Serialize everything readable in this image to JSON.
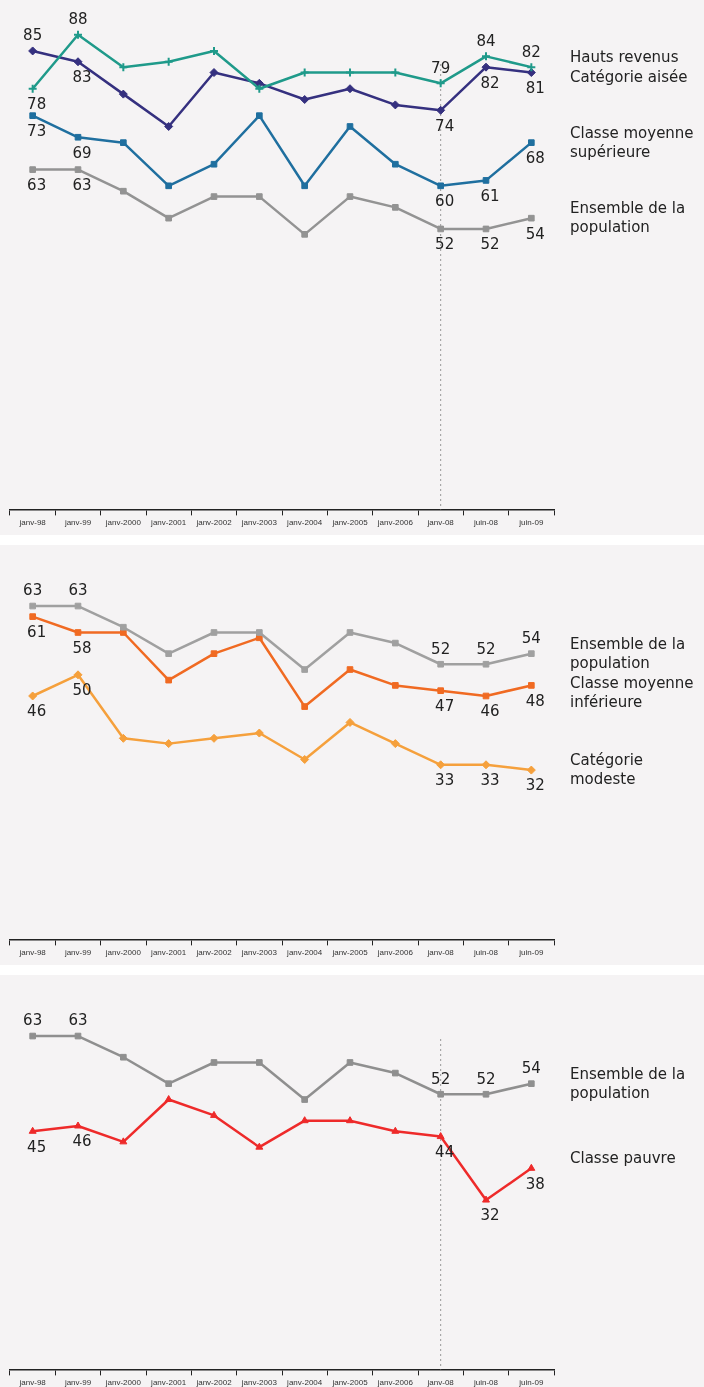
{
  "chart_data": [
    {
      "type": "line",
      "categories": [
        "janv-98",
        "janv-99",
        "janv-2000",
        "janv-2001",
        "janv-2002",
        "janv-2003",
        "janv-2004",
        "janv-2005",
        "janv-2006",
        "janv-08",
        "juin-08",
        "juin-09"
      ],
      "tick_labels": "x",
      "grid": false,
      "legend": false,
      "ref_lines": [
        {
          "axis": "x",
          "value": "janv-08",
          "color": "#999999",
          "line_style": "dotted"
        }
      ],
      "series": [
        {
          "name": "Hauts revenus",
          "color": "#1f9a8a",
          "marker": "cross",
          "values": [
            78,
            88,
            82,
            83,
            85,
            78,
            81,
            81,
            81,
            79,
            84,
            82
          ],
          "value_labels": [
            "78",
            "88",
            null,
            null,
            null,
            null,
            null,
            null,
            null,
            "79",
            "84",
            "82"
          ]
        },
        {
          "name": "Catégorie aisée",
          "color": "#35307f",
          "marker": "diamond",
          "values": [
            85,
            83,
            77,
            71,
            81,
            79,
            76,
            78,
            75,
            74,
            82,
            81
          ],
          "value_labels": [
            "85",
            "83",
            null,
            null,
            null,
            null,
            null,
            null,
            null,
            "74",
            "82",
            "81"
          ]
        },
        {
          "name": "Classe moyenne supérieure",
          "color": "#1f6f9f",
          "marker": "square",
          "values": [
            73,
            69,
            68,
            60,
            64,
            73,
            60,
            71,
            64,
            60,
            61,
            68
          ],
          "value_labels": [
            "73",
            "69",
            null,
            null,
            null,
            null,
            null,
            null,
            null,
            "60",
            "61",
            "68"
          ]
        },
        {
          "name": "Ensemble de la population",
          "color": "#939393",
          "marker": "square",
          "values": [
            63,
            63,
            59,
            54,
            58,
            58,
            51,
            58,
            56,
            52,
            52,
            54
          ],
          "value_labels": [
            "63",
            "63",
            null,
            null,
            null,
            null,
            null,
            null,
            null,
            "52",
            "52",
            "54"
          ]
        }
      ]
    },
    {
      "type": "line",
      "categories": [
        "janv-98",
        "janv-99",
        "janv-2000",
        "janv-2001",
        "janv-2002",
        "janv-2003",
        "janv-2004",
        "janv-2005",
        "janv-2006",
        "janv-08",
        "juin-08",
        "juin-09"
      ],
      "tick_labels": "x",
      "grid": false,
      "legend": false,
      "series": [
        {
          "name": "Ensemble de la population",
          "color": "#a0a0a0",
          "marker": "square",
          "values": [
            63,
            63,
            59,
            54,
            58,
            58,
            51,
            58,
            56,
            52,
            52,
            54
          ],
          "value_labels": [
            "63",
            "63",
            null,
            null,
            null,
            null,
            null,
            null,
            null,
            "52",
            "52",
            "54"
          ]
        },
        {
          "name": "Classe moyenne inférieure",
          "color": "#f06a22",
          "marker": "square",
          "values": [
            61,
            58,
            58,
            49,
            54,
            57,
            44,
            51,
            48,
            47,
            46,
            48
          ],
          "value_labels": [
            "61",
            "58",
            null,
            null,
            null,
            null,
            null,
            null,
            null,
            "47",
            "46",
            "48"
          ]
        },
        {
          "name": "Catégorie modeste",
          "color": "#f5a03c",
          "marker": "diamond",
          "values": [
            46,
            50,
            38,
            37,
            38,
            39,
            34,
            41,
            37,
            33,
            33,
            32
          ],
          "value_labels": [
            "46",
            "50",
            null,
            null,
            null,
            null,
            null,
            null,
            null,
            "33",
            "33",
            "32"
          ]
        }
      ]
    },
    {
      "type": "line",
      "categories": [
        "janv-98",
        "janv-99",
        "janv-2000",
        "janv-2001",
        "janv-2002",
        "janv-2003",
        "janv-2004",
        "janv-2005",
        "janv-2006",
        "janv-08",
        "juin-08",
        "juin-09"
      ],
      "tick_labels": "x",
      "grid": false,
      "legend": false,
      "ref_lines": [
        {
          "axis": "x",
          "value": "janv-08",
          "color": "#999999",
          "line_style": "dotted"
        }
      ],
      "series": [
        {
          "name": "Ensemble de la population",
          "color": "#8f8f8f",
          "marker": "square",
          "values": [
            63,
            63,
            59,
            54,
            58,
            58,
            51,
            58,
            56,
            52,
            52,
            54
          ],
          "value_labels": [
            "63",
            "63",
            null,
            null,
            null,
            null,
            null,
            null,
            null,
            "52",
            "52",
            "54"
          ]
        },
        {
          "name": "Classe pauvre",
          "color": "#ee2a2a",
          "marker": "triangle",
          "values": [
            45,
            46,
            43,
            51,
            48,
            42,
            47,
            47,
            45,
            44,
            32,
            38
          ],
          "value_labels": [
            "45",
            "46",
            null,
            null,
            null,
            null,
            null,
            null,
            null,
            "44",
            "32",
            "38"
          ]
        }
      ]
    }
  ]
}
